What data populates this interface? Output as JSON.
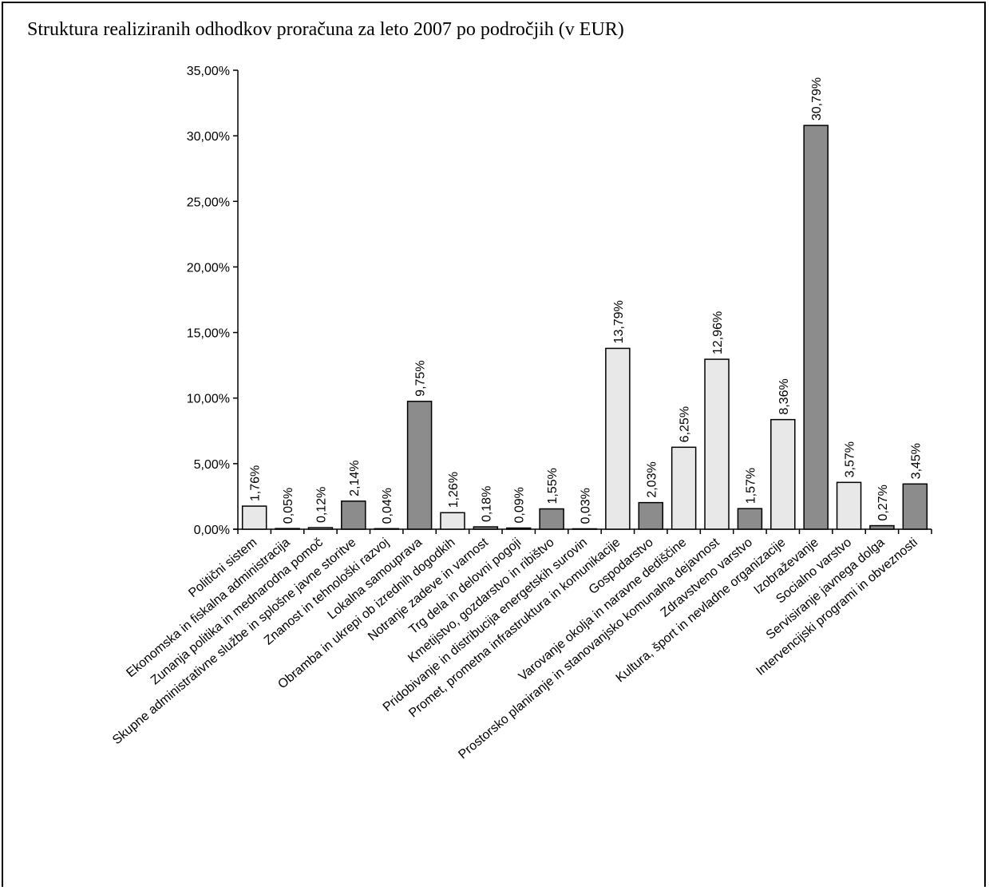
{
  "chart_data": {
    "type": "bar",
    "title": "Struktura realiziranih odhodkov proračuna za leto 2007 po področjih (v EUR)",
    "xlabel": "",
    "ylabel": "",
    "ylim": [
      0,
      35
    ],
    "yticks": [
      "0,00%",
      "5,00%",
      "10,00%",
      "15,00%",
      "20,00%",
      "25,00%",
      "30,00%",
      "35,00%"
    ],
    "grid": false,
    "legend": "none",
    "colors": {
      "light": "#e8e8e8",
      "dark": "#8c8c8c",
      "outline": "#000000"
    },
    "categories": [
      "Politični sistem",
      "Ekonomska in fiskalna administracija",
      "Zunanja politika in mednarodna pomoč",
      "Skupne administrativne službe in splošne javne storitve",
      "Znanost in tehnološki razvoj",
      "Lokalna samouprava",
      "Obramba in ukrepi ob izrednih dogodkih",
      "Notranje zadeve in varnost",
      "Trg dela in delovni pogoji",
      "Kmetijstvo, gozdarstvo in ribištvo",
      "Pridobivanje in distribucija energetskih surovin",
      "Promet, prometna infrastruktura in komunikacije",
      "Gospodarstvo",
      "Varovanje okolja in naravne dediščine",
      "Prostorsko planiranje in stanovanjsko komunalna dejavnost",
      "Zdravstveno varstvo",
      "Kultura, šport in nevladne organizacije",
      "Izobraževanje",
      "Socialno varstvo",
      "Servisiranje javnega dolga",
      "Intervencijski programi in obveznosti"
    ],
    "values": [
      1.76,
      0.05,
      0.12,
      2.14,
      0.04,
      9.75,
      1.26,
      0.18,
      0.09,
      1.55,
      0.03,
      13.79,
      2.03,
      6.25,
      12.96,
      1.57,
      8.36,
      30.79,
      3.57,
      0.27,
      3.45
    ],
    "labels": [
      "1,76%",
      "0,05%",
      "0,12%",
      "2,14%",
      "0,04%",
      "9,75%",
      "1,26%",
      "0,18%",
      "0,09%",
      "1,55%",
      "0,03%",
      "13,79%",
      "2,03%",
      "6,25%",
      "12,96%",
      "1,57%",
      "8,36%",
      "30,79%",
      "3,57%",
      "0,27%",
      "3,45%"
    ],
    "bar_colors": [
      "light",
      "light",
      "light",
      "dark",
      "light",
      "dark",
      "light",
      "dark",
      "light",
      "dark",
      "light",
      "light",
      "dark",
      "light",
      "light",
      "dark",
      "light",
      "dark",
      "light",
      "dark",
      "dark"
    ]
  }
}
